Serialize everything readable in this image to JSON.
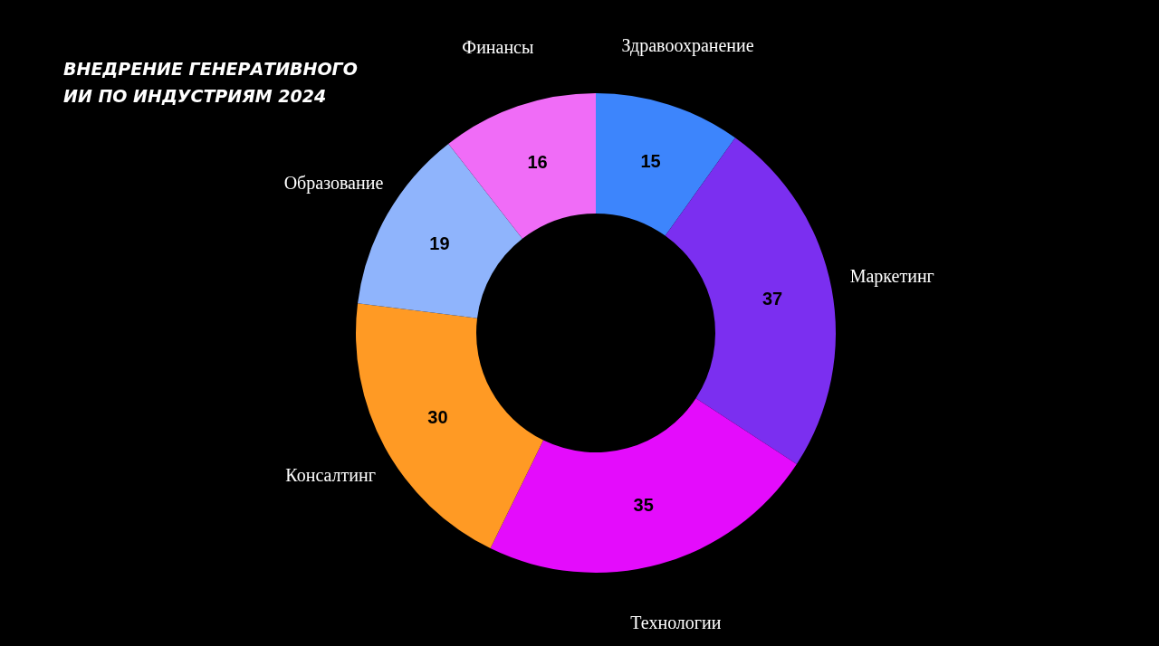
{
  "chart_data": {
    "type": "donut",
    "title": "ВНЕДРЕНИЕ ГЕНЕРАТИВНОГО ИИ ПО ИНДУСТРИЯМ 2024",
    "categories": [
      "Здравоохранение",
      "Маркетинг",
      "Технологии",
      "Консалтинг",
      "Образование",
      "Финансы"
    ],
    "values": [
      15,
      37,
      35,
      30,
      19,
      16
    ],
    "colors": [
      "#3d85fc",
      "#7b2ff0",
      "#e40cfc",
      "#ff9a24",
      "#8fb4fc",
      "#f06cf7"
    ],
    "data_labels": true
  }
}
